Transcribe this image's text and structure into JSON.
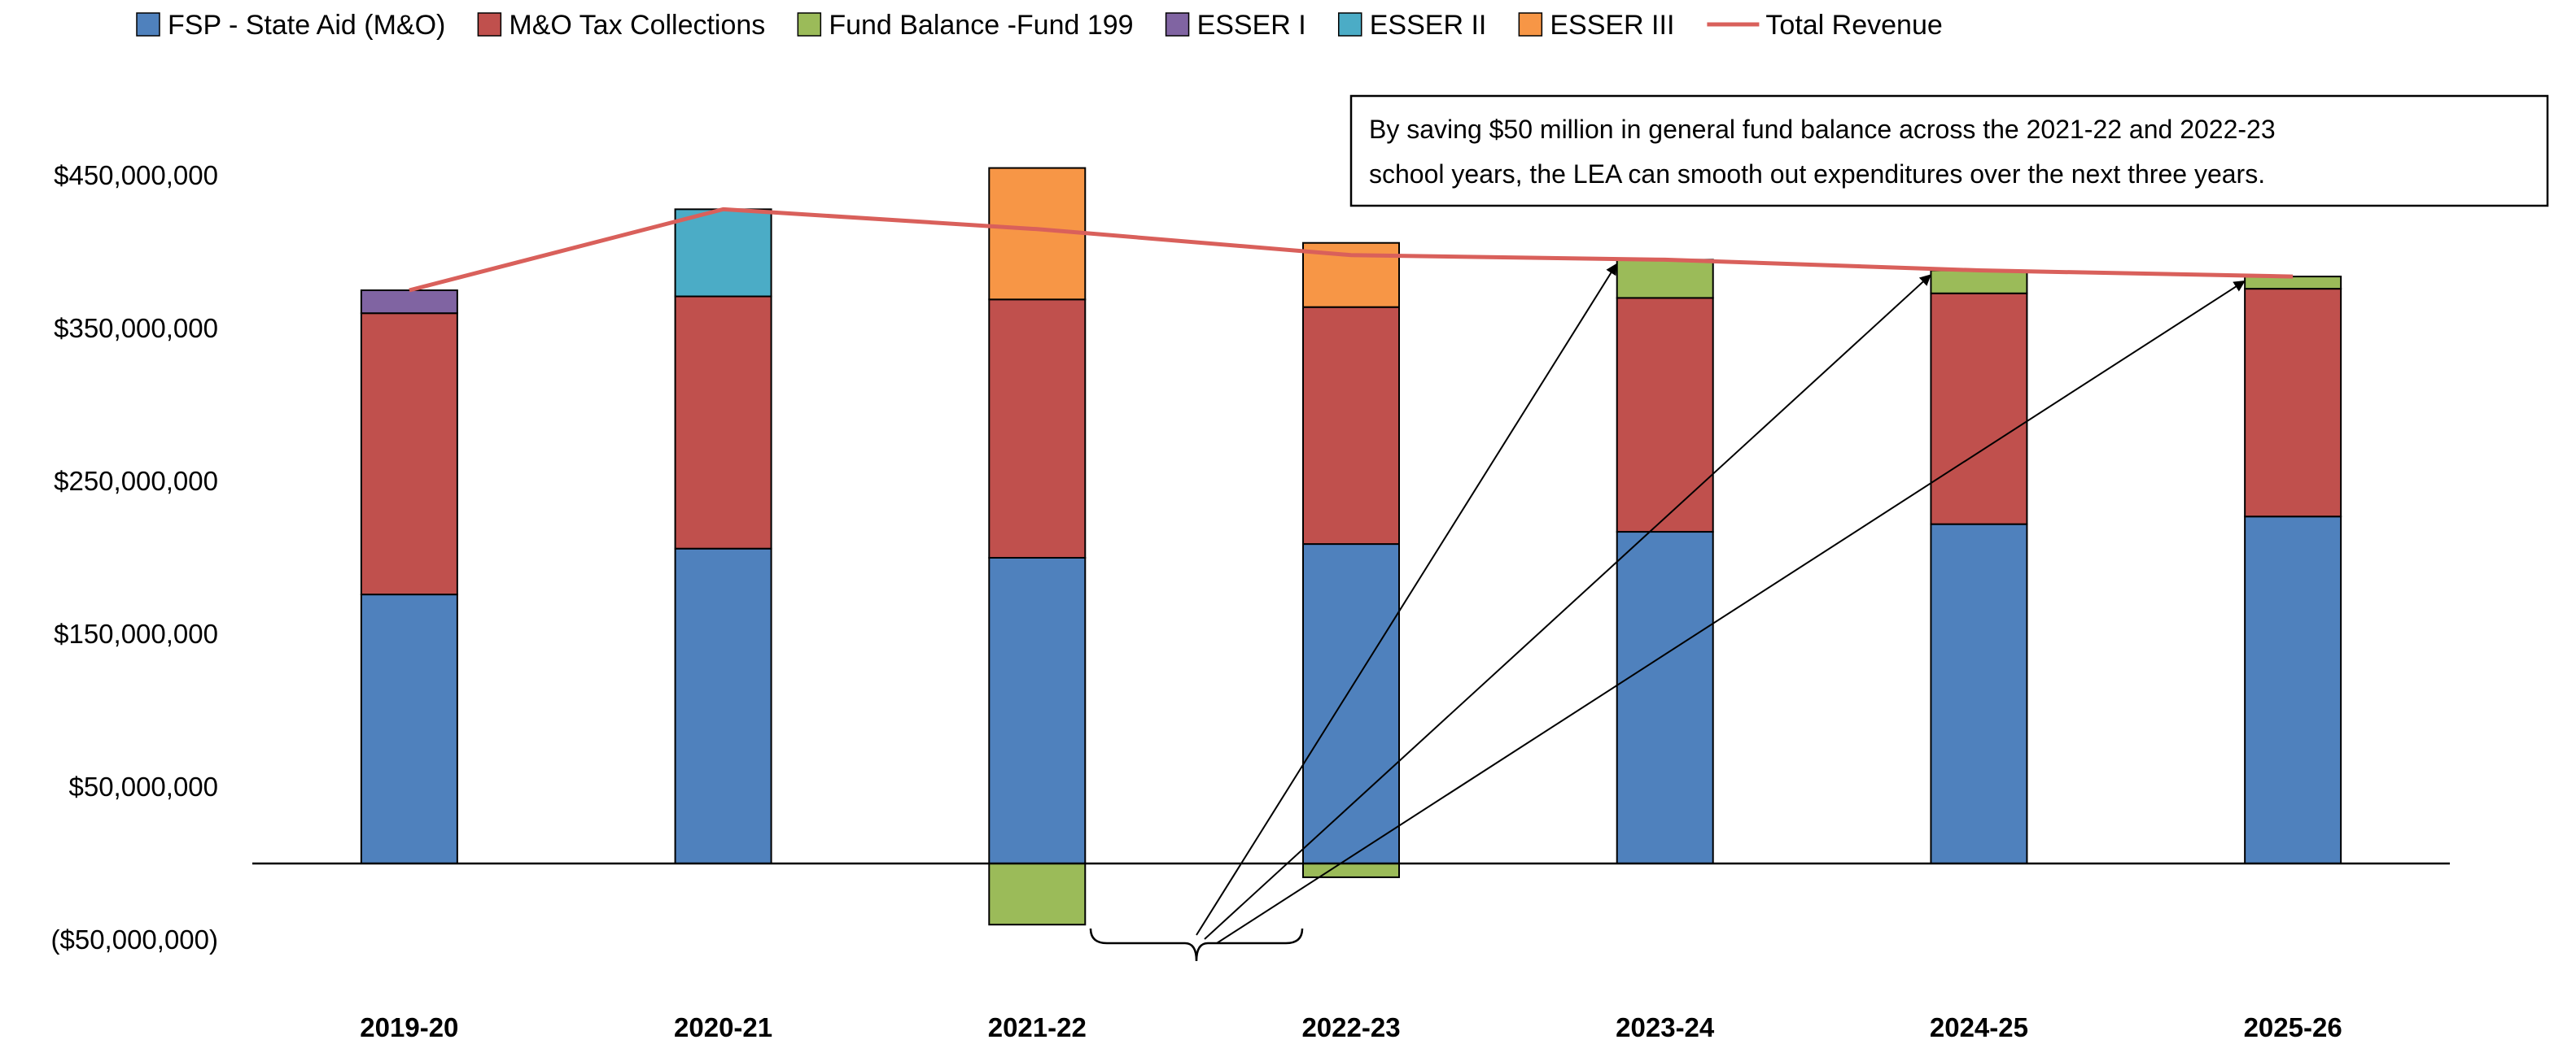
{
  "chart_data": {
    "type": "bar",
    "stacked": true,
    "categories": [
      "2019-20",
      "2020-21",
      "2021-22",
      "2022-23",
      "2023-24",
      "2024-25",
      "2025-26"
    ],
    "series": [
      {
        "name": "FSP - State Aid (M&O)",
        "color": "#4F81BD",
        "values": [
          176000000,
          206000000,
          200000000,
          209000000,
          217000000,
          222000000,
          227000000
        ]
      },
      {
        "name": "M&O Tax Collections",
        "color": "#C0504D",
        "values": [
          184000000,
          165000000,
          169000000,
          155000000,
          153000000,
          151000000,
          149000000
        ]
      },
      {
        "name": "Fund Balance -Fund 199",
        "color": "#9BBB59",
        "values": [
          0,
          0,
          -40000000,
          -9000000,
          25000000,
          15000000,
          8000000
        ]
      },
      {
        "name": "ESSER I",
        "color": "#8064A2",
        "values": [
          15000000,
          0,
          0,
          0,
          0,
          0,
          0
        ]
      },
      {
        "name": "ESSER II",
        "color": "#4BACC6",
        "values": [
          0,
          57000000,
          0,
          0,
          0,
          0,
          0
        ]
      },
      {
        "name": "ESSER III",
        "color": "#F79646",
        "values": [
          0,
          0,
          86000000,
          42000000,
          0,
          0,
          0
        ]
      }
    ],
    "line": {
      "name": "Total Revenue",
      "color": "#D9605B",
      "values": [
        375000000,
        428000000,
        415000000,
        398000000,
        395000000,
        388000000,
        384000000
      ]
    },
    "ylim": [
      -60000000,
      500000000
    ],
    "yticks": [
      -50000000,
      50000000,
      150000000,
      250000000,
      350000000,
      450000000
    ],
    "ytick_labels": [
      "($50,000,000)",
      "$50,000,000",
      "$150,000,000",
      "$250,000,000",
      "$350,000,000",
      "$450,000,000"
    ],
    "negative_tick_color": "#FF0000",
    "legend_position": "top",
    "grid": false,
    "title": "",
    "xlabel": "",
    "ylabel": ""
  },
  "callout": {
    "lines": [
      "By saving $50 million in general fund balance across the 2021-22 and 2022-23",
      "school years, the LEA can smooth out expenditures over the next three years."
    ]
  }
}
